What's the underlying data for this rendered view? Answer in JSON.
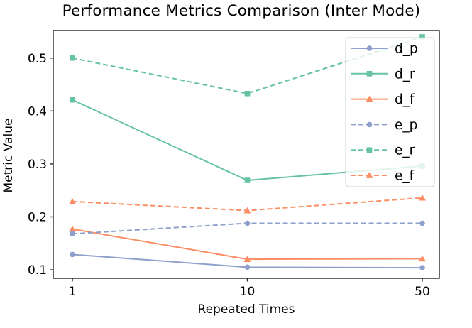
{
  "chart_data": {
    "type": "line",
    "title": "Performance Metrics Comparison (Inter Mode)",
    "xlabel": "Repeated Times",
    "ylabel": "Metric Value",
    "categories": [
      1,
      10,
      50
    ],
    "x_tick_labels": [
      "1",
      "10",
      "50"
    ],
    "y_ticks": [
      0.1,
      0.2,
      0.3,
      0.4,
      0.5
    ],
    "ylim": [
      0.084,
      0.552
    ],
    "grid": false,
    "legend_position": "upper right",
    "series": [
      {
        "name": "d_p",
        "values": [
          0.129,
          0.105,
          0.104
        ],
        "color": "#8da0cb",
        "style": "solid",
        "marker": "circle"
      },
      {
        "name": "d_r",
        "values": [
          0.421,
          0.269,
          0.296
        ],
        "color": "#66c2a5",
        "style": "solid",
        "marker": "square"
      },
      {
        "name": "d_f",
        "values": [
          0.177,
          0.12,
          0.121
        ],
        "color": "#fc8d62",
        "style": "solid",
        "marker": "triangle"
      },
      {
        "name": "e_p",
        "values": [
          0.168,
          0.188,
          0.188
        ],
        "color": "#8da0cb",
        "style": "dashed",
        "marker": "circle"
      },
      {
        "name": "e_r",
        "values": [
          0.5,
          0.433,
          0.54
        ],
        "color": "#66c2a5",
        "style": "dashed",
        "marker": "square"
      },
      {
        "name": "e_f",
        "values": [
          0.229,
          0.212,
          0.236
        ],
        "color": "#fc8d62",
        "style": "dashed",
        "marker": "triangle"
      }
    ],
    "colors": {
      "axis": "#262626",
      "text": "#000000",
      "legend_border": "#cccccc",
      "legend_bg": "rgba(255,255,255,0.8)"
    }
  }
}
